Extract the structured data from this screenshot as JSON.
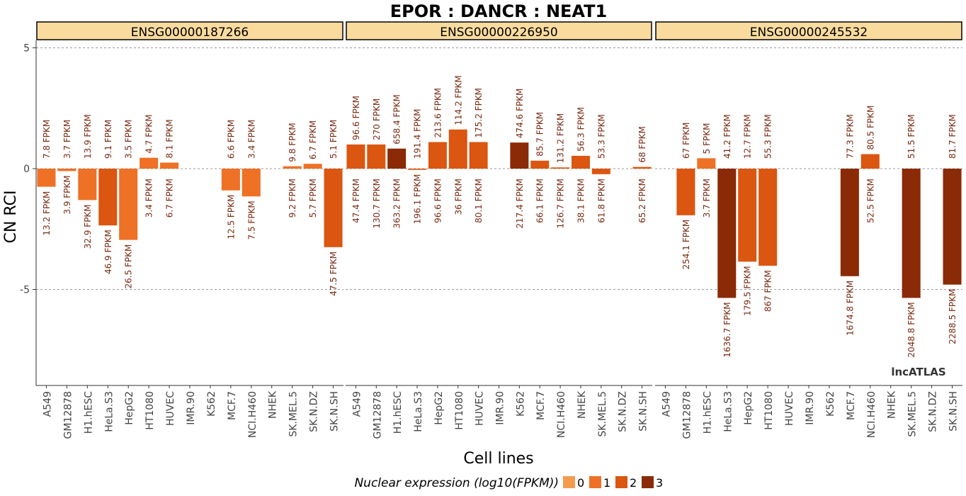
{
  "chart_data": {
    "type": "bar",
    "title": "EPOR : DANCR : NEAT1",
    "xlabel": "Cell lines",
    "ylabel": "CN RCI",
    "ylim": [
      -9,
      6
    ],
    "yticks": [
      5,
      0,
      -5
    ],
    "ytick_labels": [
      "5",
      "0",
      "-5"
    ],
    "categories": [
      "A549",
      "GM12878",
      "H1.hESC",
      "HeLa.S3",
      "HepG2",
      "HT1080",
      "HUVEC",
      "IMR.90",
      "K562",
      "MCF.7",
      "NCI.H460",
      "NHEK",
      "SK.MEL.5",
      "SK.N.DZ",
      "SK.N.SH"
    ],
    "facets": [
      {
        "name": "ENSG00000187266",
        "values": [
          -0.75,
          -0.1,
          -1.3,
          -2.35,
          -2.95,
          0.45,
          0.25,
          null,
          null,
          -0.9,
          -1.15,
          null,
          0.1,
          0.2,
          -3.25
        ],
        "levels": [
          1,
          1,
          1,
          2,
          1,
          1,
          1,
          null,
          null,
          1,
          1,
          null,
          1,
          1,
          2
        ],
        "top_labels": [
          "7.8 FPKM",
          "3.7 FPKM",
          "13.9 FPKM",
          "9.1 FPKM",
          "3.5 FPKM",
          "4.7 FPKM",
          "8.1 FPKM",
          "",
          "",
          "6.6 FPKM",
          "3.4 FPKM",
          "",
          "9.8 FPKM",
          "6.7 FPKM",
          "5.1 FPKM"
        ],
        "bottom_labels": [
          "13.2 FPKM",
          "3.9 FPKM",
          "32.9 FPKM",
          "46.9 FPKM",
          "26.5 FPKM",
          "3.4 FPKM",
          "6.7 FPKM",
          "",
          "",
          "12.5 FPKM",
          "7.5 FPKM",
          "",
          "9.2 FPKM",
          "5.7 FPKM",
          "47.5 FPKM"
        ]
      },
      {
        "name": "ENSG00000226950",
        "values": [
          1.0,
          1.0,
          0.83,
          -0.05,
          1.1,
          1.62,
          1.1,
          null,
          1.08,
          0.33,
          0.05,
          0.53,
          -0.23,
          null,
          0.07
        ],
        "levels": [
          2,
          2,
          3,
          2,
          2,
          2,
          2,
          null,
          3,
          2,
          2,
          2,
          2,
          null,
          2
        ],
        "top_labels": [
          "96.6 FPKM",
          "270 FPKM",
          "658.4 FPKM",
          "191.4 FPKM",
          "213.6 FPKM",
          "114.2 FPKM",
          "175.2 FPKM",
          "",
          "474.6 FPKM",
          "85.7 FPKM",
          "131.2 FPKM",
          "56.3 FPKM",
          "53.3 FPKM",
          "",
          "68 FPKM"
        ],
        "bottom_labels": [
          "47.4 FPKM",
          "130.7 FPKM",
          "363.2 FPKM",
          "196.1 FPKM",
          "96.6 FPKM",
          "36 FPKM",
          "80.1 FPKM",
          "",
          "217.4 FPKM",
          "66.1 FPKM",
          "126.7 FPKM",
          "38.1 FPKM",
          "61.8 FPKM",
          "",
          "65.2 FPKM"
        ]
      },
      {
        "name": "ENSG00000245532",
        "values": [
          null,
          -1.93,
          0.43,
          -5.35,
          -3.85,
          -4.02,
          null,
          null,
          null,
          -4.45,
          0.6,
          null,
          -5.35,
          null,
          -4.8
        ],
        "levels": [
          null,
          2,
          1,
          3,
          2,
          2,
          null,
          null,
          null,
          3,
          2,
          null,
          3,
          null,
          3
        ],
        "top_labels": [
          "",
          "67 FPKM",
          "5 FPKM",
          "41.2 FPKM",
          "12.7 FPKM",
          "55.3 FPKM",
          "",
          "",
          "",
          "77.3 FPKM",
          "80.5 FPKM",
          "",
          "51.5 FPKM",
          "",
          "81.7 FPKM"
        ],
        "bottom_labels": [
          "",
          "254.1 FPKM",
          "3.7 FPKM",
          "1636.7 FPKM",
          "179.5 FPKM",
          "867 FPKM",
          "",
          "",
          "",
          "1674.8 FPKM",
          "52.5 FPKM",
          "",
          "2048.8 FPKM",
          "",
          "2288.5 FPKM"
        ]
      }
    ],
    "legend": {
      "title": "Nuclear expression (log10(FPKM))",
      "position": "bottom",
      "levels": [
        "0",
        "1",
        "2",
        "3"
      ],
      "colors": [
        "#F59B4E",
        "#EE7126",
        "#DB5610",
        "#8B2A06"
      ]
    },
    "watermark": "lncATLAS",
    "grid_lines_y": [
      5,
      0,
      -5
    ]
  }
}
